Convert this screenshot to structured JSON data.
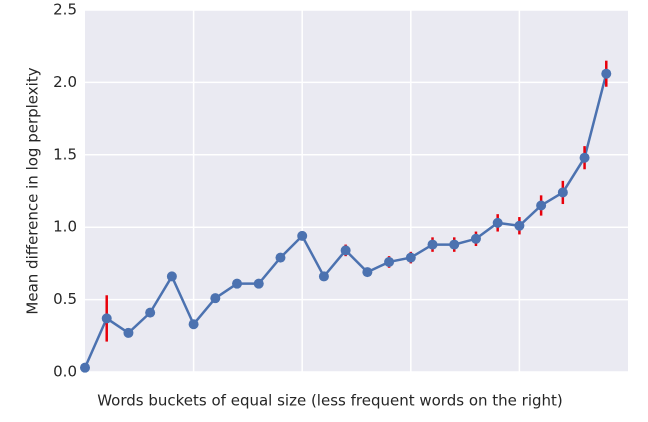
{
  "chart_data": {
    "type": "line",
    "xlabel": "Words buckets of equal size (less frequent words on the right)",
    "ylabel": "Mean difference in log perplexity",
    "x": [
      0,
      1,
      2,
      3,
      4,
      5,
      6,
      7,
      8,
      9,
      10,
      11,
      12,
      13,
      14,
      15,
      16,
      17,
      18,
      19,
      20,
      21,
      22,
      23,
      24
    ],
    "series": [
      {
        "color": "#4c72b0",
        "error_color": "#e8000b",
        "values": [
          0.03,
          0.37,
          0.27,
          0.41,
          0.66,
          0.33,
          0.51,
          0.61,
          0.61,
          0.79,
          0.94,
          0.66,
          0.84,
          0.69,
          0.76,
          0.79,
          0.88,
          0.88,
          0.92,
          1.03,
          1.01,
          1.15,
          1.24,
          1.48,
          2.06
        ],
        "errors": [
          0.02,
          0.16,
          0.02,
          0.02,
          0.02,
          0.02,
          0.02,
          0.02,
          0.02,
          0.02,
          0.03,
          0.02,
          0.04,
          0.03,
          0.04,
          0.04,
          0.05,
          0.05,
          0.05,
          0.06,
          0.06,
          0.07,
          0.08,
          0.08,
          0.09
        ]
      }
    ],
    "xlim": [
      0,
      25
    ],
    "xticks": [
      5,
      10,
      15,
      20
    ],
    "xtick_labels": false,
    "ylim": [
      0,
      2.5
    ],
    "yticks": [
      {
        "value": 0,
        "label": "0.0"
      },
      0.5,
      {
        "value": 1,
        "label": "1.0"
      },
      1.5,
      {
        "value": 2,
        "label": "2.0"
      },
      2.5
    ],
    "grid": true,
    "background": "#eaeaf2"
  }
}
